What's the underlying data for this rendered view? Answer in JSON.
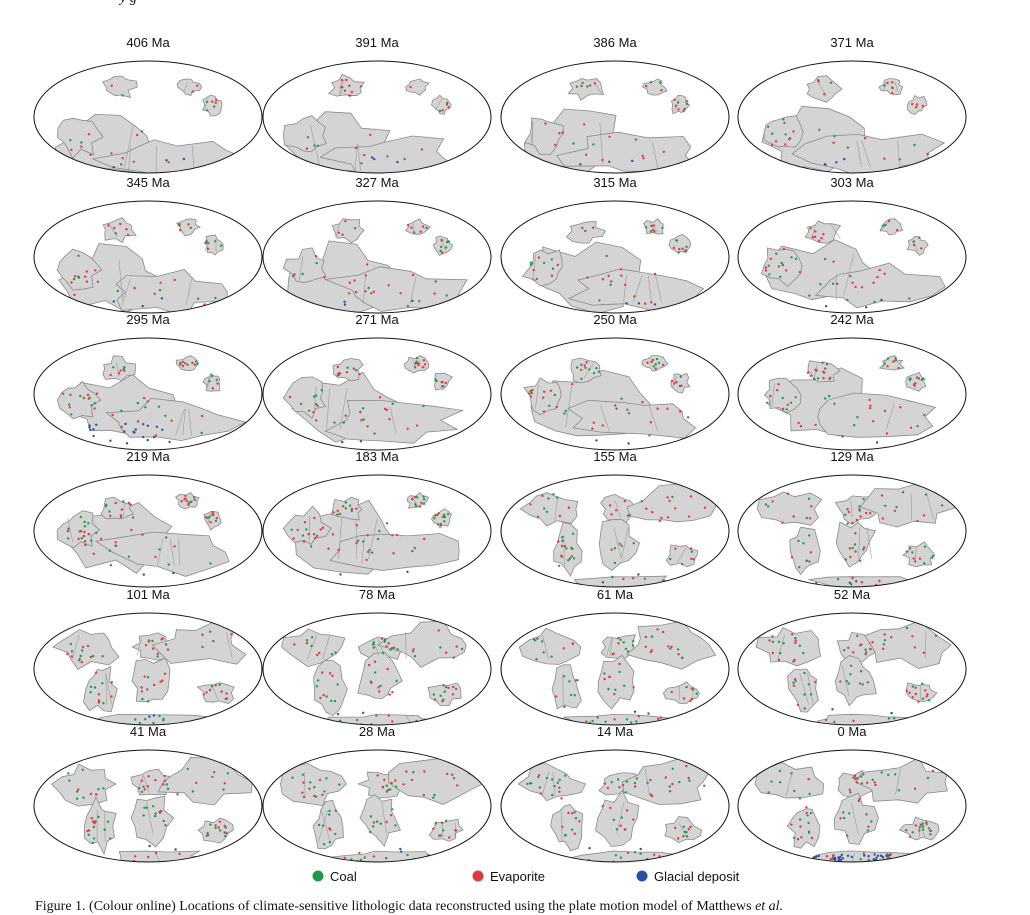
{
  "figure": {
    "header_fragment": "y                    g",
    "panels": [
      {
        "label": "406 Ma"
      },
      {
        "label": "391 Ma"
      },
      {
        "label": "386 Ma"
      },
      {
        "label": "371 Ma"
      },
      {
        "label": "345 Ma"
      },
      {
        "label": "327 Ma"
      },
      {
        "label": "315 Ma"
      },
      {
        "label": "303 Ma"
      },
      {
        "label": "295 Ma"
      },
      {
        "label": "271 Ma"
      },
      {
        "label": "250 Ma"
      },
      {
        "label": "242 Ma"
      },
      {
        "label": "219 Ma"
      },
      {
        "label": "183 Ma"
      },
      {
        "label": "155 Ma"
      },
      {
        "label": "129 Ma"
      },
      {
        "label": "101 Ma"
      },
      {
        "label": "78 Ma"
      },
      {
        "label": "61 Ma"
      },
      {
        "label": "52 Ma"
      },
      {
        "label": "41 Ma"
      },
      {
        "label": "28 Ma"
      },
      {
        "label": "14 Ma"
      },
      {
        "label": "0 Ma"
      }
    ],
    "legend": [
      {
        "label": "Coal",
        "color": "#1f9a4c"
      },
      {
        "label": "Evaporite",
        "color": "#e03a3e"
      },
      {
        "label": "Glacial deposit",
        "color": "#2b4fa3"
      }
    ],
    "caption_main": "Figure 1.  (Colour online) Locations of climate-sensitive lithologic data reconstructed using the plate motion model of Matthews ",
    "caption_ital": "et al."
  }
}
